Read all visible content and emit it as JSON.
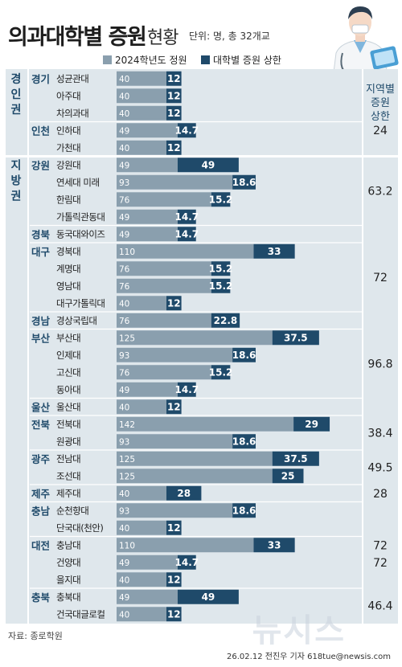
{
  "header": {
    "title_main": "의과대학별 증원",
    "title_sub": "현황",
    "unit_note": "단위: 명, 총 32개교"
  },
  "legend": {
    "base_label": "2024학년도 정원",
    "increase_label": "대학별 증원 상한"
  },
  "colors": {
    "base": "#8a9fae",
    "increase": "#1f4a6a",
    "background": "#dfe7ec",
    "accent_text": "#1f4a6a",
    "divider": "#ffffff"
  },
  "footer": {
    "source": "자료: 종로학원",
    "credit": "26.02.12 전진우 기자 618tue@newsis.com",
    "watermark": "뉴시스"
  },
  "chart_data": {
    "type": "bar",
    "stacked": true,
    "orientation": "horizontal",
    "title": "의과대학별 증원 현황",
    "unit": "명",
    "region_total_header": "지역별 증원 상한",
    "series": [
      {
        "name": "2024학년도 정원",
        "key": "base"
      },
      {
        "name": "대학별 증원 상한",
        "key": "increase"
      }
    ],
    "zones": [
      {
        "name": "경인권",
        "groups": [
          {
            "region": "경기",
            "region_total": "",
            "schools": [
              {
                "name": "성균관대",
                "base": 40,
                "increase": 12
              },
              {
                "name": "아주대",
                "base": 40,
                "increase": 12
              },
              {
                "name": "차의과대",
                "base": 40,
                "increase": 12
              }
            ]
          },
          {
            "region": "인천",
            "region_total": "",
            "schools": [
              {
                "name": "인하대",
                "base": 49,
                "increase": 14.7
              },
              {
                "name": "가천대",
                "base": 40,
                "increase": 12
              }
            ]
          }
        ]
      },
      {
        "name": "지방권",
        "groups": [
          {
            "region": "강원",
            "region_total": "63.2",
            "schools": [
              {
                "name": "강원대",
                "base": 49,
                "increase": 49
              },
              {
                "name": "연세대 미래",
                "base": 93,
                "increase": 18.6
              },
              {
                "name": "한림대",
                "base": 76,
                "increase": 15.2
              },
              {
                "name": "가톨릭관동대",
                "base": 49,
                "increase": 14.7
              }
            ]
          },
          {
            "region": "경북",
            "region_total": "",
            "schools": [
              {
                "name": "동국대와이즈",
                "base": 49,
                "increase": 14.7
              }
            ]
          },
          {
            "region": "대구",
            "region_total": "72",
            "schools": [
              {
                "name": "경북대",
                "base": 110,
                "increase": 33
              },
              {
                "name": "계명대",
                "base": 76,
                "increase": 15.2
              },
              {
                "name": "영남대",
                "base": 76,
                "increase": 15.2
              },
              {
                "name": "대구가톨릭대",
                "base": 40,
                "increase": 12
              }
            ]
          },
          {
            "region": "경남",
            "region_total": "",
            "schools": [
              {
                "name": "경상국립대",
                "base": 76,
                "increase": 22.8
              }
            ]
          },
          {
            "region": "부산",
            "region_total": "96.8",
            "schools": [
              {
                "name": "부산대",
                "base": 125,
                "increase": 37.5
              },
              {
                "name": "인제대",
                "base": 93,
                "increase": 18.6
              },
              {
                "name": "고신대",
                "base": 76,
                "increase": 15.2
              },
              {
                "name": "동아대",
                "base": 49,
                "increase": 14.7
              }
            ]
          },
          {
            "region": "울산",
            "region_total": "",
            "schools": [
              {
                "name": "울산대",
                "base": 40,
                "increase": 12
              }
            ]
          },
          {
            "region": "전북",
            "region_total": "38.4",
            "schools": [
              {
                "name": "전북대",
                "base": 142,
                "increase": 29
              },
              {
                "name": "원광대",
                "base": 93,
                "increase": 18.6
              }
            ]
          },
          {
            "region": "광주",
            "region_total": "49.5",
            "schools": [
              {
                "name": "전남대",
                "base": 125,
                "increase": 37.5
              },
              {
                "name": "조선대",
                "base": 125,
                "increase": 25
              }
            ]
          },
          {
            "region": "제주",
            "region_total": "28",
            "schools": [
              {
                "name": "제주대",
                "base": 40,
                "increase": 28
              }
            ]
          },
          {
            "region": "충남",
            "region_total": "",
            "schools": [
              {
                "name": "순천향대",
                "base": 93,
                "increase": 18.6
              },
              {
                "name": "단국대(천안)",
                "base": 40,
                "increase": 12
              }
            ]
          },
          {
            "region": "대전",
            "region_total": "72",
            "schools": [
              {
                "name": "충남대",
                "base": 110,
                "increase": 33
              },
              {
                "name": "건양대",
                "base": 49,
                "increase": 14.7
              },
              {
                "name": "을지대",
                "base": 40,
                "increase": 12
              }
            ]
          },
          {
            "region": "충북",
            "region_total": "46.4",
            "schools": [
              {
                "name": "충북대",
                "base": 49,
                "increase": 49
              },
              {
                "name": "건국대글로컬",
                "base": 40,
                "increase": 12
              }
            ]
          }
        ]
      }
    ],
    "region_total_special": [
      {
        "label": "24",
        "covers": [
          "경기",
          "인천"
        ]
      },
      {
        "label": "72",
        "covers": [
          "충남",
          "대전"
        ]
      }
    ]
  }
}
